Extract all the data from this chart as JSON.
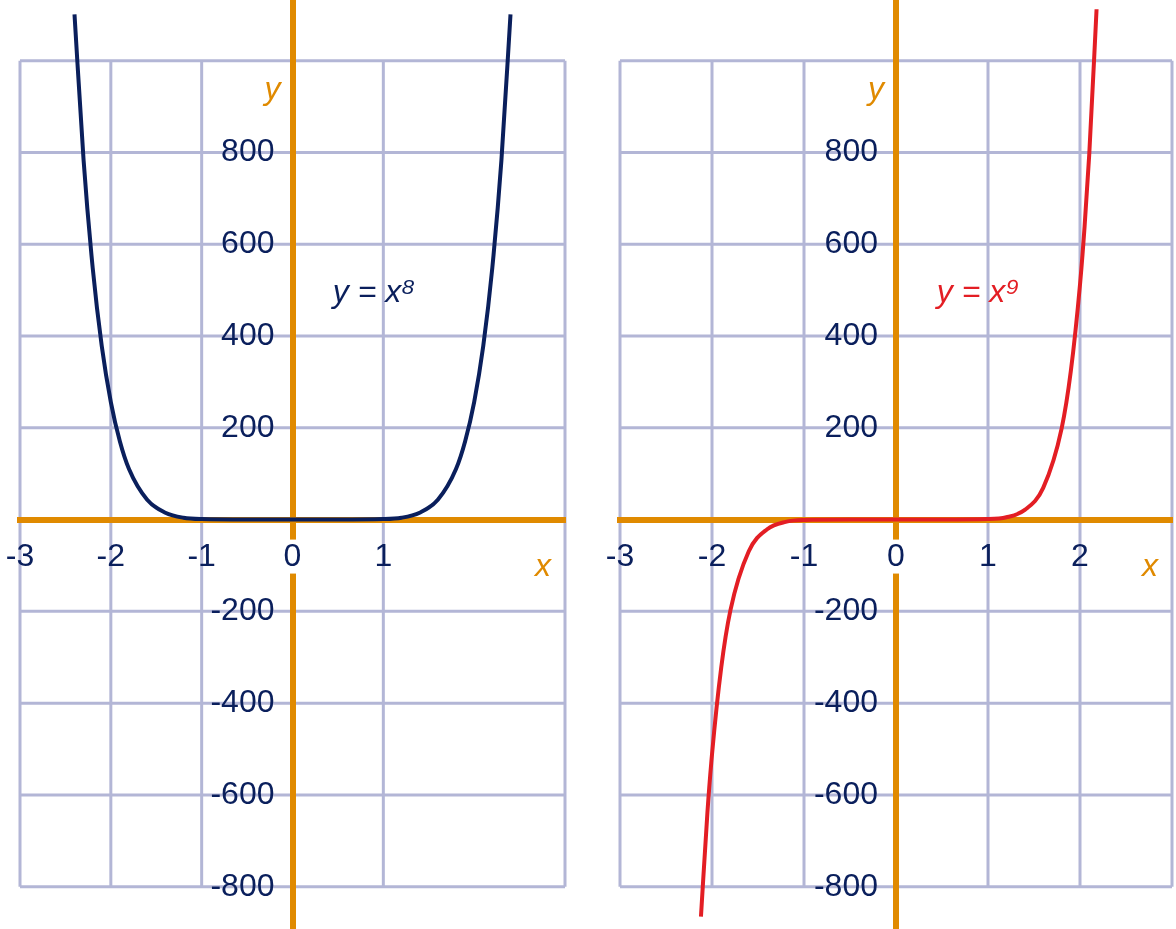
{
  "chart_data": [
    {
      "type": "line",
      "xlabel": "x",
      "ylabel": "y",
      "grid": true,
      "xlim": [
        -3,
        3
      ],
      "xticks": [
        -3,
        -2,
        -1,
        0,
        1,
        {
          "value": 3,
          "label": null
        }
      ],
      "ylim": [
        -890,
        1130
      ],
      "yticks": [
        -800,
        -600,
        -400,
        -200,
        200,
        400,
        600,
        800,
        {
          "value": 1000,
          "label": null
        }
      ],
      "x": [
        -2.4,
        -2.3,
        -2.2,
        -2.1,
        -2,
        -1.9,
        -1.8,
        -1.6,
        -1.4,
        -1.2,
        -1,
        -0.5,
        0,
        0.5,
        1,
        1.2,
        1.4,
        1.6,
        1.8,
        1.9,
        2,
        2.1,
        2.2,
        2.3,
        2.4
      ],
      "series": [
        {
          "name": "y = x⁸",
          "color": "#0a1f5c",
          "values": [
            1101,
            783,
            549,
            378,
            256,
            170,
            110,
            43,
            15,
            4,
            1,
            0,
            0,
            0,
            1,
            4,
            15,
            43,
            110,
            170,
            256,
            378,
            549,
            783,
            1101
          ]
        }
      ]
    },
    {
      "type": "line",
      "xlabel": "x",
      "ylabel": "y",
      "grid": true,
      "xlim": [
        -3,
        3
      ],
      "xticks": [
        -3,
        -2,
        -1,
        0,
        1,
        2,
        {
          "value": 3,
          "label": null
        }
      ],
      "ylim": [
        -890,
        1130
      ],
      "yticks": [
        -800,
        -600,
        -400,
        -200,
        200,
        400,
        600,
        800,
        {
          "value": 1000,
          "label": null
        }
      ],
      "x": [
        -2.12,
        -2.05,
        -2,
        -1.9,
        -1.8,
        -1.6,
        -1.4,
        -1.2,
        -1,
        -0.5,
        0,
        0.5,
        1,
        1.2,
        1.4,
        1.6,
        1.8,
        1.9,
        2,
        2.05,
        2.1,
        2.18
      ],
      "series": [
        {
          "name": "y = x⁹",
          "color": "#e31e24",
          "values": [
            -865,
            -639,
            -512,
            -323,
            -198,
            -69,
            -21,
            -5,
            -1,
            0,
            0,
            0,
            1,
            5,
            21,
            69,
            198,
            323,
            512,
            639,
            794,
            1112
          ]
        }
      ]
    }
  ]
}
